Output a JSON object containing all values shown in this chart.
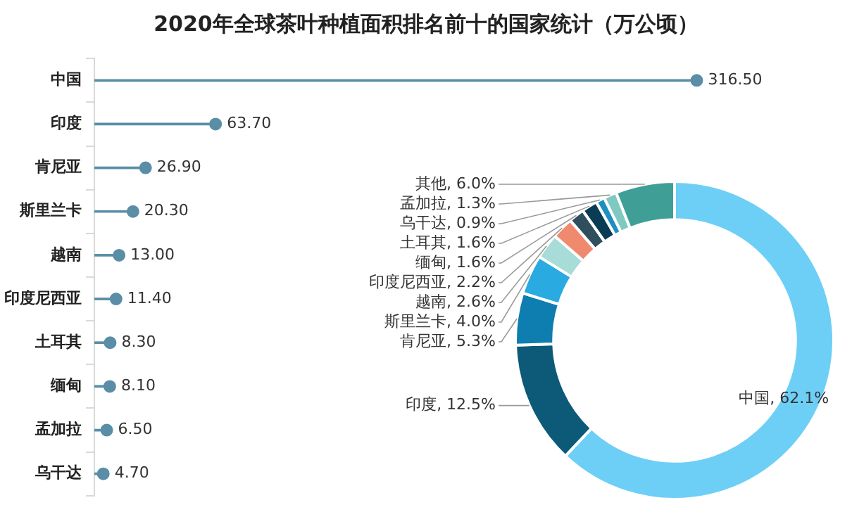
{
  "chart_data": [
    {
      "type": "lollipop",
      "title": "2020年全球茶叶种植面积排名前十的国家统计（万公顷）",
      "orientation": "horizontal",
      "categories": [
        "中国",
        "印度",
        "肯尼亚",
        "斯里兰卡",
        "越南",
        "印度尼西亚",
        "土耳其",
        "缅甸",
        "孟加拉",
        "乌干达"
      ],
      "values": [
        316.5,
        63.7,
        26.9,
        20.3,
        13.0,
        11.4,
        8.3,
        8.1,
        6.5,
        4.7
      ],
      "value_labels": [
        "316.50",
        "63.70",
        "26.90",
        "20.30",
        "13.00",
        "11.40",
        "8.30",
        "8.10",
        "6.50",
        "4.70"
      ],
      "color": "#5a8ea6"
    },
    {
      "type": "donut",
      "categories": [
        "中国",
        "印度",
        "肯尼亚",
        "斯里兰卡",
        "越南",
        "印度尼西亚",
        "缅甸",
        "土耳其",
        "乌干达",
        "孟加拉",
        "其他"
      ],
      "values": [
        62.1,
        12.5,
        5.3,
        4.0,
        2.6,
        2.2,
        1.6,
        1.6,
        0.9,
        1.3,
        6.0
      ],
      "colors": [
        "#6dcff6",
        "#0c5a78",
        "#0e7db0",
        "#29abe2",
        "#a8dcd8",
        "#f08a6e",
        "#2f4f5f",
        "#0a3d55",
        "#1e8fc0",
        "#7fc9c0",
        "#3f9f97"
      ],
      "value_labels": [
        "62.1%",
        "12.5%",
        "5.3%",
        "4.0%",
        "2.6%",
        "2.2%",
        "1.6%",
        "1.6%",
        "0.9%",
        "1.3%",
        "6.0%"
      ]
    }
  ]
}
